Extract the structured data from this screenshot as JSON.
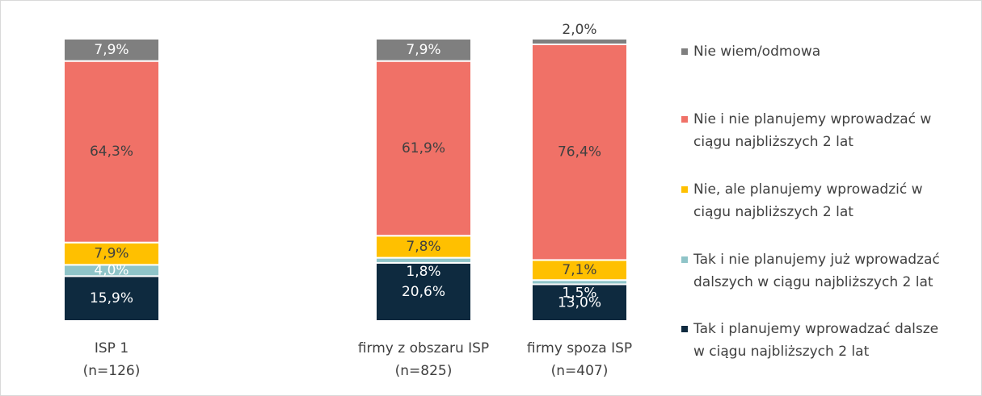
{
  "chart_data": {
    "type": "stacked_bar",
    "categories": [
      "ISP 1\n(n=126)",
      null,
      "firmy z obszaru ISP\n(n=825)",
      "firmy spoza ISP\n(n=407)"
    ],
    "ylim": [
      0,
      100
    ],
    "series": [
      {
        "name": "Tak i planujemy wprowadzać dalsze\nw ciągu najbliższych 2 lat",
        "color": "#0e2a3f",
        "label_color": "#ffffff",
        "values": [
          15.9,
          null,
          20.6,
          13.0
        ],
        "value_labels": [
          "15,9%",
          null,
          "20,6%",
          "13,0%"
        ]
      },
      {
        "name": "Tak i nie planujemy już wprowadzać\ndalszych w ciągu najbliższych 2 lat",
        "color": "#8fc4c8",
        "label_color": "#ffffff",
        "values": [
          4.0,
          null,
          1.8,
          1.5
        ],
        "value_labels": [
          "4,0%",
          null,
          "1,8%",
          "1,5%"
        ]
      },
      {
        "name": "Nie, ale planujemy wprowadzić w\nciągu najbliższych 2 lat",
        "color": "#ffc000",
        "label_color": "#404040",
        "values": [
          7.9,
          null,
          7.8,
          7.1
        ],
        "value_labels": [
          "7,9%",
          null,
          "7,8%",
          "7,1%"
        ]
      },
      {
        "name": "Nie i nie planujemy wprowadzać w\nciągu najbliższych 2 lat",
        "color": "#f07167",
        "label_color": "#404040",
        "values": [
          64.3,
          null,
          61.9,
          76.4
        ],
        "value_labels": [
          "64,3%",
          null,
          "61,9%",
          "76,4%"
        ]
      },
      {
        "name": "Nie wiem/odmowa",
        "color": "#7f7f7f",
        "label_color": "#ffffff",
        "values": [
          7.9,
          null,
          7.9,
          2.0
        ],
        "value_labels": [
          "7,9%",
          null,
          "7,9%",
          "2,0%"
        ]
      }
    ]
  }
}
